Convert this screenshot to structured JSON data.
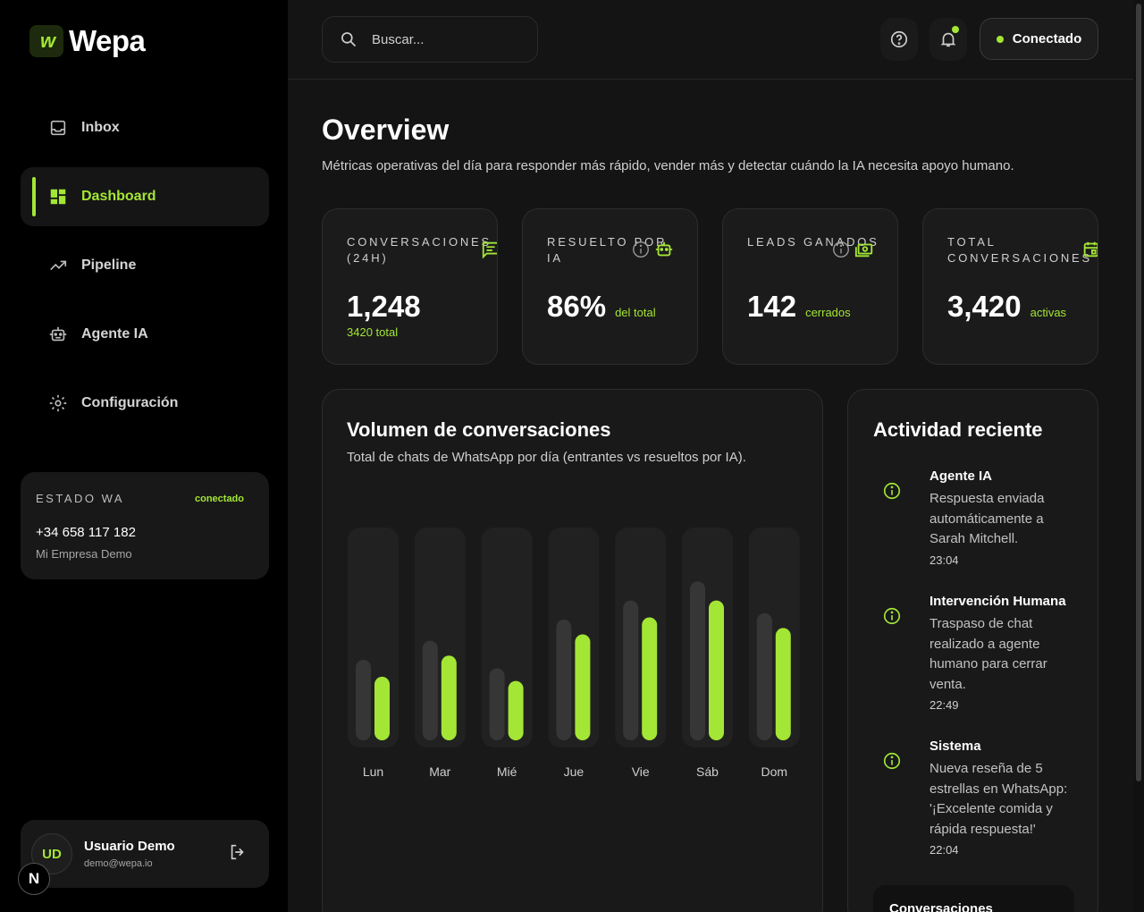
{
  "brand": {
    "name": "Wepa",
    "mark": "w"
  },
  "sidebar": {
    "items": [
      {
        "label": "Inbox",
        "icon": "inbox-icon"
      },
      {
        "label": "Dashboard",
        "icon": "dashboard-icon",
        "active": true
      },
      {
        "label": "Pipeline",
        "icon": "trending-up-icon"
      },
      {
        "label": "Agente IA",
        "icon": "robot-icon"
      },
      {
        "label": "Configuración",
        "icon": "gear-icon"
      }
    ],
    "wa": {
      "title": "ESTADO WA",
      "status": "conectado",
      "phone": "+34 658 117 182",
      "company": "Mi Empresa Demo"
    },
    "user": {
      "initials": "UD",
      "name": "Usuario Demo",
      "email": "demo@wepa.io"
    },
    "next_badge": "N"
  },
  "header": {
    "search_placeholder": "Buscar...",
    "connect_label": "Conectado"
  },
  "main": {
    "title": "Overview",
    "subtitle": "Métricas operativas del día para responder más rápido, vender más y detectar cuándo la IA necesita apoyo humano."
  },
  "stats": [
    {
      "label": "CONVERSACIONES (24H)",
      "value": "1,248",
      "suffix": "",
      "sub": "3420 total",
      "icon": "chat-icon",
      "info": false
    },
    {
      "label": "RESUELTO POR IA",
      "value": "86%",
      "suffix": "del total",
      "sub": "",
      "icon": "robot-icon",
      "info": true
    },
    {
      "label": "LEADS GANADOS",
      "value": "142",
      "suffix": "cerrados",
      "sub": "",
      "icon": "money-icon",
      "info": true
    },
    {
      "label": "TOTAL CONVERSACIONES",
      "value": "3,420",
      "suffix": "activas",
      "sub": "",
      "icon": "calendar-icon",
      "info": false
    }
  ],
  "chart_data": {
    "type": "bar",
    "title": "Volumen de conversaciones",
    "subtitle": "Total de chats de WhatsApp por día (entrantes vs resueltos por IA).",
    "categories": [
      "Lun",
      "Mar",
      "Mié",
      "Jue",
      "Vie",
      "Sáb",
      "Dom"
    ],
    "series": [
      {
        "name": "entrantes",
        "values": [
          38,
          47,
          34,
          57,
          66,
          75,
          60
        ]
      },
      {
        "name": "resueltos por IA",
        "values": [
          30,
          40,
          28,
          50,
          58,
          66,
          53
        ]
      }
    ],
    "ylim": [
      0,
      100
    ],
    "colors": {
      "entrantes": "#363636",
      "resueltos": "#a3e635",
      "track": "#212121"
    }
  },
  "activity": {
    "title": "Actividad reciente",
    "items": [
      {
        "title": "Agente IA",
        "text": "Respuesta enviada automáticamente a Sarah Mitchell.",
        "time": "23:04"
      },
      {
        "title": "Intervención Humana",
        "text": "Traspaso de chat realizado a agente humano para cerrar venta.",
        "time": "22:49"
      },
      {
        "title": "Sistema",
        "text": "Nueva reseña de 5 estrellas en WhatsApp: '¡Excelente comida y rápida respuesta!'",
        "time": "22:04"
      }
    ],
    "bottom_tab": "Conversaciones"
  },
  "colors": {
    "accent": "#a3e635",
    "background": "#141414",
    "sidebar": "#000000"
  }
}
